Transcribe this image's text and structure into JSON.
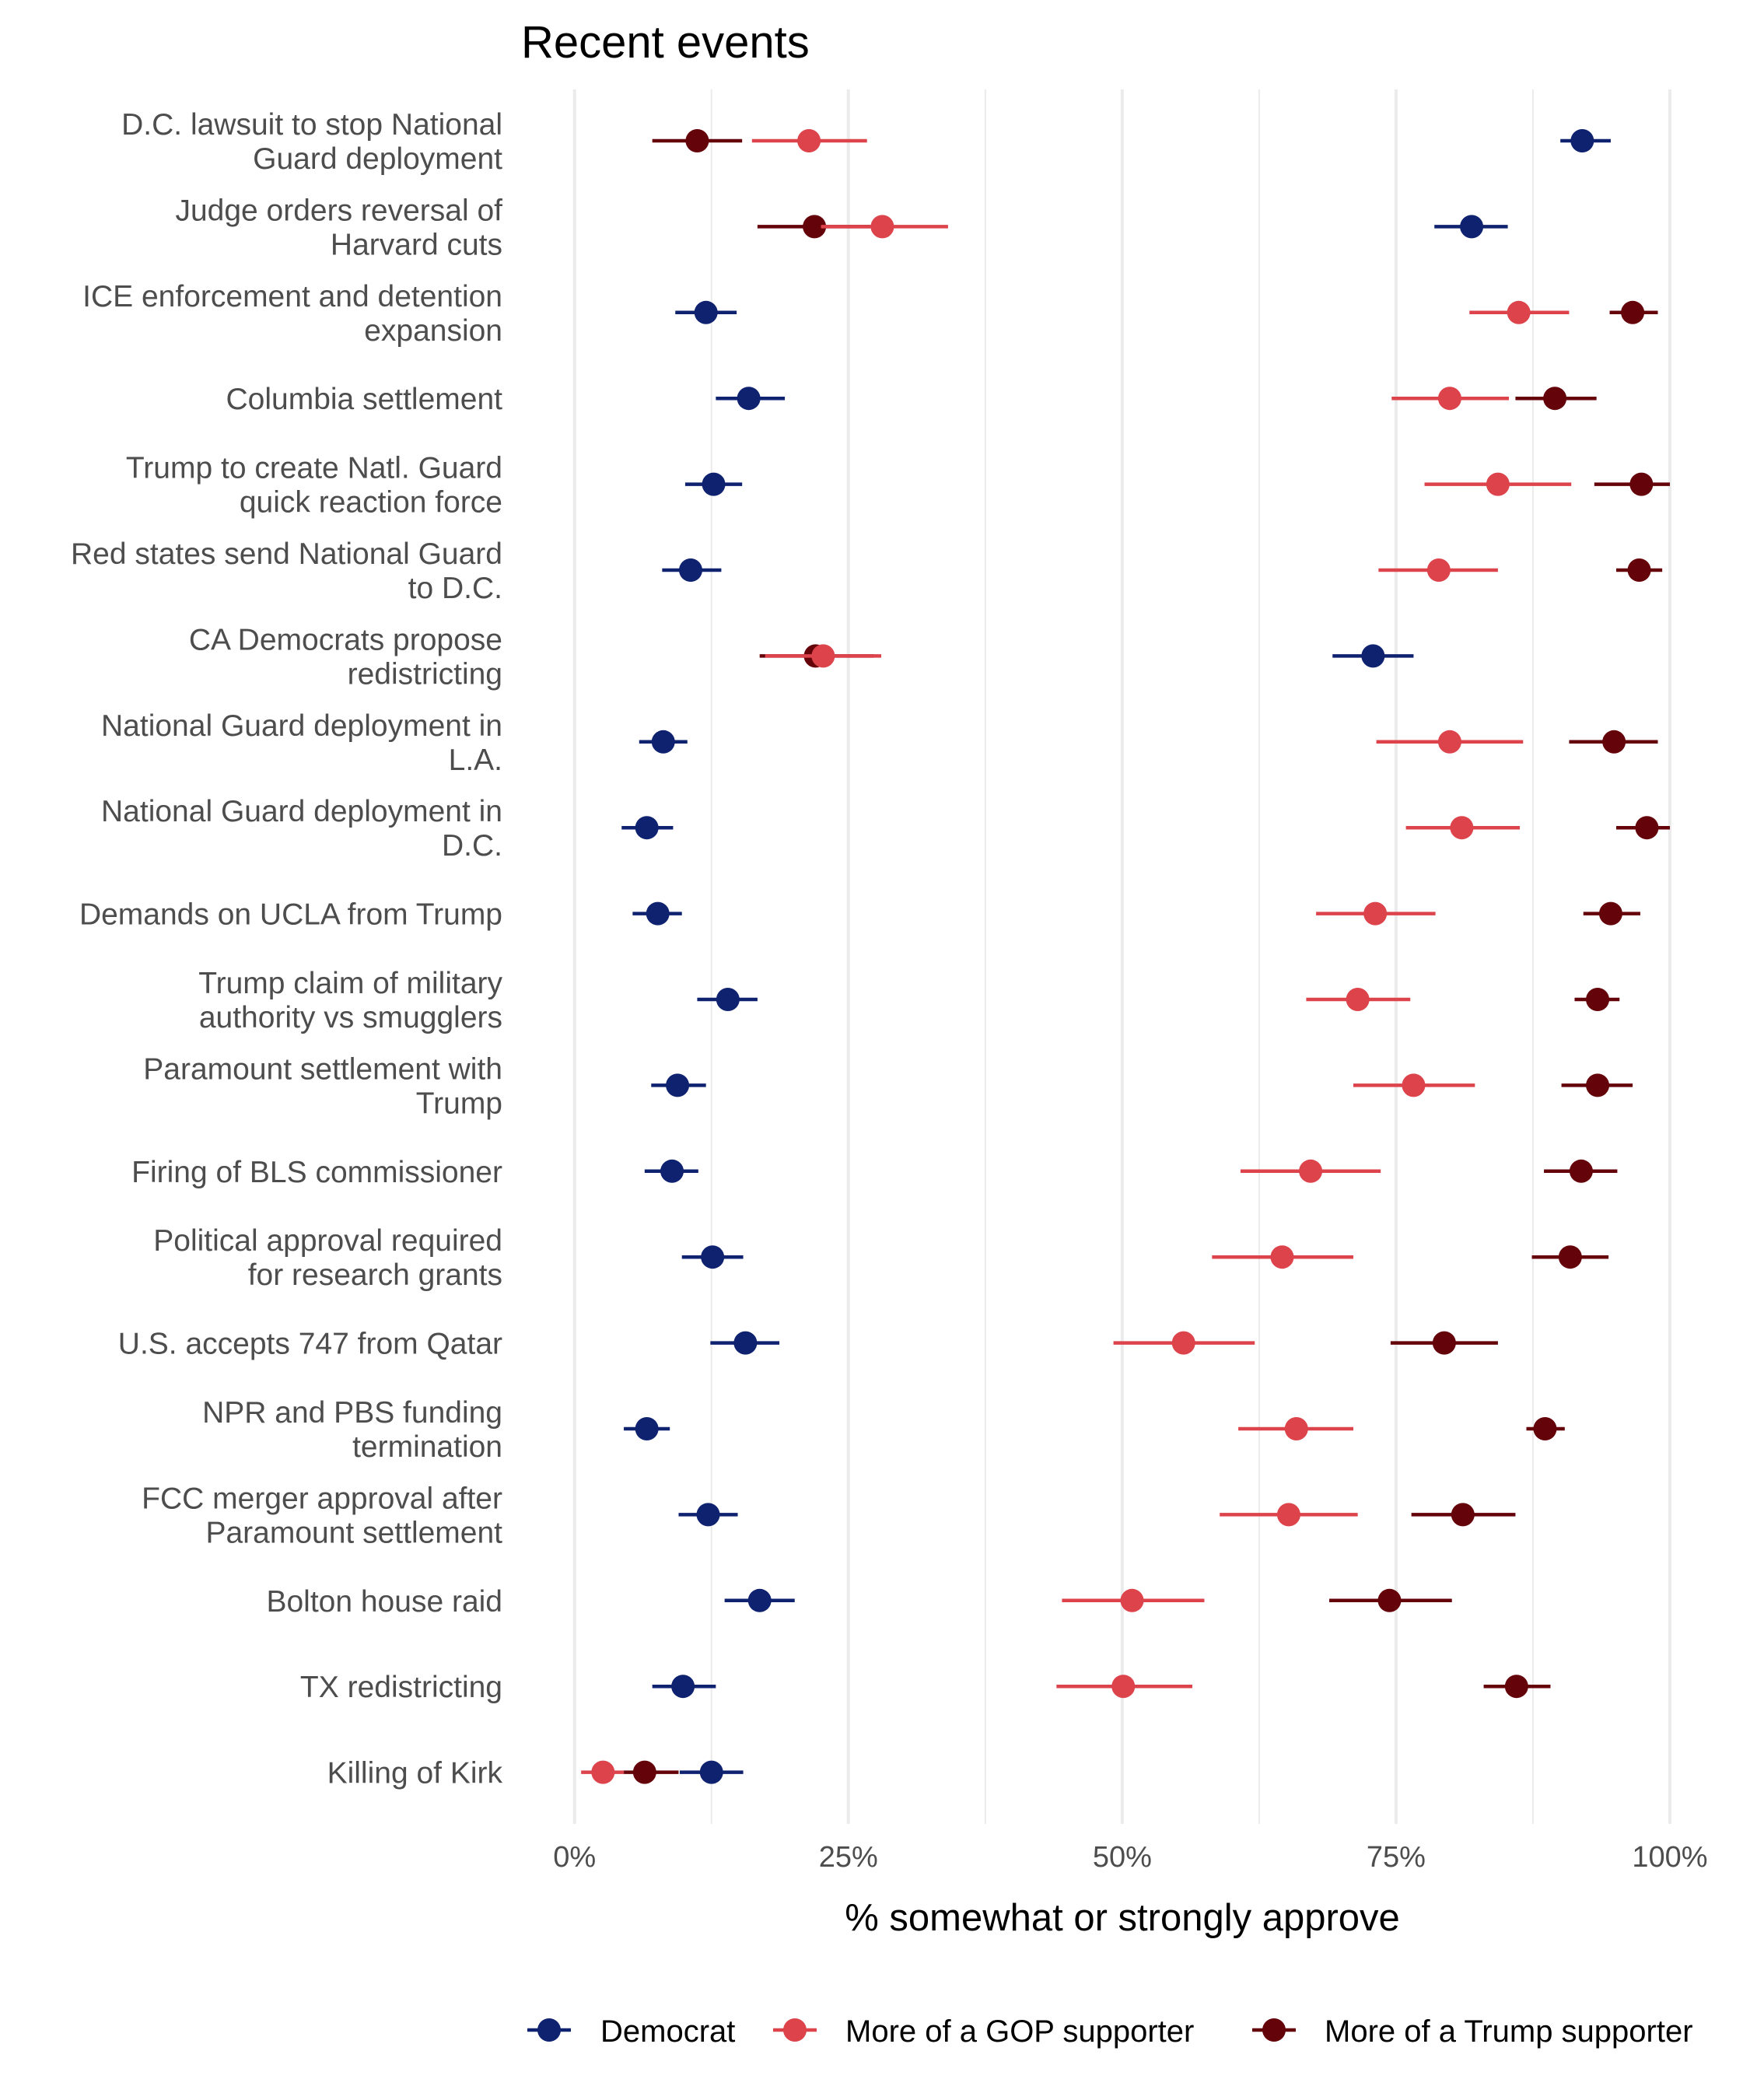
{
  "chart_data": {
    "type": "dot-errorbar",
    "title": "Recent events",
    "xlabel": "% somewhat or strongly approve",
    "ylabel": "",
    "xlim": [
      0,
      100
    ],
    "x_ticks": [
      0,
      25,
      50,
      75,
      100
    ],
    "x_tick_labels": [
      "0%",
      "25%",
      "50%",
      "75%",
      "100%"
    ],
    "grid": "vertical",
    "legend_position": "bottom",
    "series": [
      {
        "name": "Democrat",
        "color": "#0f2270"
      },
      {
        "name": "More of a GOP supporter",
        "color": "#dd434b"
      },
      {
        "name": "More of a Trump supporter",
        "color": "#640309"
      }
    ],
    "categories": [
      {
        "label": [
          "D.C. lawsuit to stop National",
          "Guard deployment"
        ],
        "values": {
          "Democrat": [
            92.0,
            90.0,
            94.6
          ],
          "More of a GOP supporter": [
            21.4,
            16.2,
            26.7
          ],
          "More of a Trump supporter": [
            11.2,
            7.1,
            15.3
          ]
        }
      },
      {
        "label": [
          "Judge orders reversal of",
          "Harvard cuts"
        ],
        "values": {
          "Democrat": [
            81.9,
            78.5,
            85.2
          ],
          "More of a GOP supporter": [
            28.1,
            22.5,
            34.1
          ],
          "More of a Trump supporter": [
            21.9,
            16.7,
            27.0
          ]
        }
      },
      {
        "label": [
          "ICE enforcement and detention",
          "expansion"
        ],
        "values": {
          "Democrat": [
            12.0,
            9.2,
            14.8
          ],
          "More of a GOP supporter": [
            86.2,
            81.7,
            90.8
          ],
          "More of a Trump supporter": [
            96.6,
            94.5,
            98.9
          ]
        }
      },
      {
        "label": [
          "Columbia settlement"
        ],
        "values": {
          "Democrat": [
            15.9,
            12.9,
            19.2
          ],
          "More of a GOP supporter": [
            79.9,
            74.6,
            85.3
          ],
          "More of a Trump supporter": [
            89.5,
            85.9,
            93.3
          ]
        }
      },
      {
        "label": [
          "Trump to create Natl. Guard",
          "quick reaction force"
        ],
        "values": {
          "Democrat": [
            12.7,
            10.1,
            15.3
          ],
          "More of a GOP supporter": [
            84.3,
            77.6,
            91.0
          ],
          "More of a Trump supporter": [
            97.4,
            93.1,
            100.0
          ]
        }
      },
      {
        "label": [
          "Red states send National Guard",
          "to D.C."
        ],
        "values": {
          "Democrat": [
            10.6,
            8.0,
            13.4
          ],
          "More of a GOP supporter": [
            78.9,
            73.4,
            84.3
          ],
          "More of a Trump supporter": [
            97.2,
            95.1,
            99.3
          ]
        }
      },
      {
        "label": [
          "CA Democrats propose",
          "redistricting"
        ],
        "values": {
          "Democrat": [
            72.9,
            69.2,
            76.6
          ],
          "More of a GOP supporter": [
            22.7,
            17.4,
            28.0
          ],
          "More of a Trump supporter": [
            22.0,
            16.9,
            27.3
          ]
        }
      },
      {
        "label": [
          "National Guard deployment in",
          "L.A."
        ],
        "values": {
          "Democrat": [
            8.1,
            5.9,
            10.3
          ],
          "More of a GOP supporter": [
            79.9,
            73.2,
            86.6
          ],
          "More of a Trump supporter": [
            94.9,
            90.8,
            98.9
          ]
        }
      },
      {
        "label": [
          "National Guard deployment in",
          "D.C."
        ],
        "values": {
          "Democrat": [
            6.6,
            4.3,
            9.0
          ],
          "More of a GOP supporter": [
            81.0,
            75.9,
            86.3
          ],
          "More of a Trump supporter": [
            97.9,
            95.1,
            100.0
          ]
        }
      },
      {
        "label": [
          "Demands on UCLA from Trump"
        ],
        "values": {
          "Democrat": [
            7.6,
            5.3,
            9.8
          ],
          "More of a GOP supporter": [
            73.1,
            67.7,
            78.6
          ],
          "More of a Trump supporter": [
            94.6,
            92.1,
            97.3
          ]
        }
      },
      {
        "label": [
          "Trump claim of military",
          "authority vs smugglers"
        ],
        "values": {
          "Democrat": [
            14.0,
            11.2,
            16.7
          ],
          "More of a GOP supporter": [
            71.5,
            66.8,
            76.3
          ],
          "More of a Trump supporter": [
            93.4,
            91.3,
            95.4
          ]
        }
      },
      {
        "label": [
          "Paramount settlement with",
          "Trump"
        ],
        "values": {
          "Democrat": [
            9.4,
            7.0,
            12.0
          ],
          "More of a GOP supporter": [
            76.6,
            71.1,
            82.2
          ],
          "More of a Trump supporter": [
            93.4,
            90.1,
            96.6
          ]
        }
      },
      {
        "label": [
          "Firing of BLS commissioner"
        ],
        "values": {
          "Democrat": [
            8.9,
            6.4,
            11.3
          ],
          "More of a GOP supporter": [
            67.2,
            60.8,
            73.6
          ],
          "More of a Trump supporter": [
            91.9,
            88.5,
            95.2
          ]
        }
      },
      {
        "label": [
          "Political approval required",
          "for research grants"
        ],
        "values": {
          "Democrat": [
            12.6,
            9.8,
            15.4
          ],
          "More of a GOP supporter": [
            64.6,
            58.2,
            71.1
          ],
          "More of a Trump supporter": [
            90.9,
            87.4,
            94.4
          ]
        }
      },
      {
        "label": [
          "U.S. accepts 747 from Qatar"
        ],
        "values": {
          "Democrat": [
            15.6,
            12.4,
            18.7
          ],
          "More of a GOP supporter": [
            55.6,
            49.2,
            62.1
          ],
          "More of a Trump supporter": [
            79.4,
            74.5,
            84.3
          ]
        }
      },
      {
        "label": [
          "NPR and PBS funding",
          "termination"
        ],
        "values": {
          "Democrat": [
            6.6,
            4.5,
            8.7
          ],
          "More of a GOP supporter": [
            65.9,
            60.6,
            71.1
          ],
          "More of a Trump supporter": [
            88.6,
            86.9,
            90.4
          ]
        }
      },
      {
        "label": [
          "FCC merger approval after",
          "Paramount settlement"
        ],
        "values": {
          "Democrat": [
            12.2,
            9.5,
            14.9
          ],
          "More of a GOP supporter": [
            65.2,
            58.9,
            71.5
          ],
          "More of a Trump supporter": [
            81.1,
            76.4,
            85.9
          ]
        }
      },
      {
        "label": [
          "Bolton house raid"
        ],
        "values": {
          "Democrat": [
            16.9,
            13.7,
            20.1
          ],
          "More of a GOP supporter": [
            50.9,
            44.5,
            57.5
          ],
          "More of a Trump supporter": [
            74.4,
            68.9,
            80.1
          ]
        }
      },
      {
        "label": [
          "TX redistricting"
        ],
        "values": {
          "Democrat": [
            9.9,
            7.1,
            12.9
          ],
          "More of a GOP supporter": [
            50.1,
            44.0,
            56.4
          ],
          "More of a Trump supporter": [
            86.0,
            83.0,
            89.1
          ]
        }
      },
      {
        "label": [
          "Killing of Kirk"
        ],
        "values": {
          "Democrat": [
            12.5,
            9.6,
            15.4
          ],
          "More of a GOP supporter": [
            2.6,
            0.6,
            4.5
          ],
          "More of a Trump supporter": [
            6.4,
            4.5,
            9.5
          ]
        }
      }
    ],
    "value_format": "[estimate, ci_low, ci_high] in percent"
  }
}
